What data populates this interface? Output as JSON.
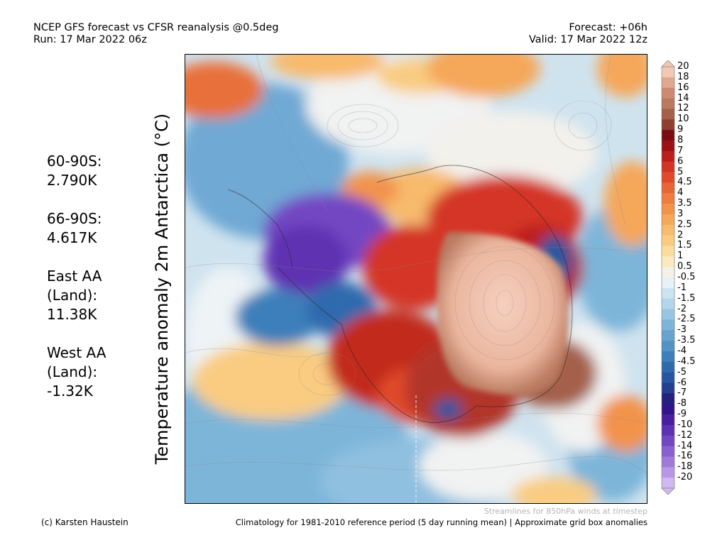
{
  "header": {
    "line1_left": "NCEP GFS forecast vs CFSR reanalysis @0.5deg",
    "line2_left": "Run: 17 Mar 2022 06z",
    "line1_right": "Forecast: +06h",
    "line2_right": "Valid: 17 Mar 2022 12z"
  },
  "stats": [
    {
      "lines": [
        "60-90S:",
        "2.790K"
      ]
    },
    {
      "lines": [
        "66-90S:",
        "4.617K"
      ]
    },
    {
      "lines": [
        "East AA",
        "(Land):",
        "11.38K"
      ]
    },
    {
      "lines": [
        "West AA",
        "(Land):",
        "-1.32K"
      ]
    }
  ],
  "map": {
    "title": "Temperature anomaly 2m Antarctica (°C)"
  },
  "colorbar": {
    "levels": [
      "20",
      "18",
      "16",
      "14",
      "12",
      "10",
      "9",
      "8",
      "7",
      "6",
      "5",
      "4.5",
      "4",
      "3.5",
      "3",
      "2.5",
      "2",
      "1.5",
      "1",
      "0.5",
      "-0.5",
      "-1",
      "-1.5",
      "-2",
      "-2.5",
      "-3",
      "-3.5",
      "-4",
      "-4.5",
      "-5",
      "-6",
      "-7",
      "-8",
      "-9",
      "-10",
      "-12",
      "-14",
      "-16",
      "-18",
      "-20"
    ],
    "colors": [
      "#f2c8b4",
      "#e0a891",
      "#cc8a72",
      "#b97a60",
      "#a5604b",
      "#8f3f2f",
      "#7a0c12",
      "#9a1016",
      "#bb1e1c",
      "#d43426",
      "#e04a2a",
      "#e86535",
      "#ef7d3f",
      "#f2934b",
      "#f5a75a",
      "#f8ba6c",
      "#f9cc82",
      "#fadc9e",
      "#fbe9bf",
      "#f4f1e8",
      "#e6f1f8",
      "#cce4f2",
      "#b2d6ec",
      "#97c6e3",
      "#7db5d9",
      "#66a3cf",
      "#5292c5",
      "#3e7fba",
      "#2e6bad",
      "#2656a0",
      "#233f92",
      "#251f7e",
      "#32148a",
      "#4a1f9f",
      "#5e30b2",
      "#7346c2",
      "#8a5fd0",
      "#a07adb",
      "#b897e5",
      "#d0b8f0"
    ]
  },
  "footer": {
    "streamlines_note": "Streamlines for 850hPa winds at timestep",
    "credit": "(c) Karsten Haustein",
    "climatology": "Climatology for 1981-2010 reference period (5 day running mean) | Approximate grid box anomalies"
  }
}
